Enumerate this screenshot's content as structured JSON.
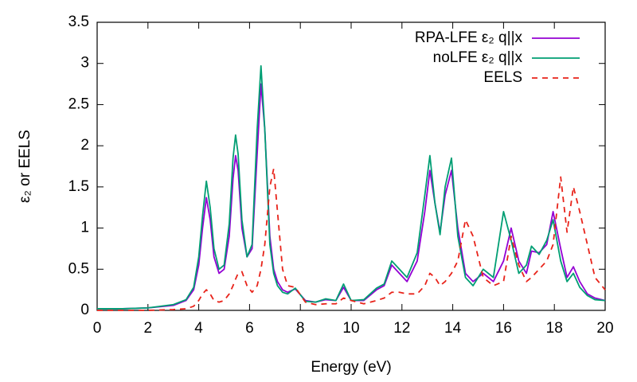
{
  "chart_data": {
    "type": "line",
    "xlabel": "Energy (eV)",
    "ylabel": "ε₂ or EELS",
    "x": [
      0,
      1,
      2,
      3,
      3.5,
      3.8,
      4.0,
      4.15,
      4.3,
      4.45,
      4.6,
      4.8,
      5.0,
      5.2,
      5.35,
      5.45,
      5.55,
      5.7,
      5.9,
      6.1,
      6.3,
      6.45,
      6.6,
      6.8,
      6.95,
      7.1,
      7.3,
      7.5,
      7.8,
      8.2,
      8.6,
      9.0,
      9.4,
      9.7,
      10.0,
      10.5,
      11.0,
      11.3,
      11.6,
      11.9,
      12.2,
      12.6,
      12.9,
      13.1,
      13.3,
      13.5,
      13.7,
      13.95,
      14.2,
      14.5,
      14.8,
      15.2,
      15.6,
      16.0,
      16.3,
      16.6,
      16.9,
      17.1,
      17.4,
      17.7,
      17.95,
      18.25,
      18.5,
      18.75,
      19.0,
      19.3,
      19.6,
      20
    ],
    "series": [
      {
        "name": "RPA-LFE ε₂ q||x",
        "color": "#9400d3",
        "dashed": false,
        "values": [
          0.02,
          0.02,
          0.03,
          0.06,
          0.12,
          0.25,
          0.55,
          1.0,
          1.37,
          1.1,
          0.65,
          0.45,
          0.5,
          0.9,
          1.6,
          1.88,
          1.7,
          1.0,
          0.65,
          0.75,
          1.9,
          2.75,
          2.2,
          0.9,
          0.5,
          0.35,
          0.25,
          0.22,
          0.26,
          0.12,
          0.1,
          0.13,
          0.12,
          0.28,
          0.12,
          0.12,
          0.25,
          0.3,
          0.55,
          0.45,
          0.35,
          0.6,
          1.2,
          1.7,
          1.3,
          0.95,
          1.4,
          1.7,
          1.0,
          0.45,
          0.35,
          0.45,
          0.35,
          0.6,
          1.0,
          0.6,
          0.45,
          0.72,
          0.7,
          0.8,
          1.2,
          0.75,
          0.4,
          0.53,
          0.35,
          0.2,
          0.15,
          0.12
        ]
      },
      {
        "name": "noLFE ε₂ q||x",
        "color": "#009e73",
        "dashed": false,
        "values": [
          0.02,
          0.02,
          0.03,
          0.07,
          0.13,
          0.28,
          0.65,
          1.15,
          1.57,
          1.25,
          0.75,
          0.5,
          0.55,
          1.05,
          1.85,
          2.13,
          1.9,
          1.1,
          0.65,
          0.8,
          2.2,
          2.97,
          2.2,
          0.8,
          0.45,
          0.3,
          0.22,
          0.2,
          0.27,
          0.11,
          0.1,
          0.14,
          0.12,
          0.32,
          0.12,
          0.13,
          0.27,
          0.32,
          0.6,
          0.5,
          0.4,
          0.7,
          1.4,
          1.88,
          1.3,
          0.92,
          1.5,
          1.85,
          0.9,
          0.4,
          0.3,
          0.5,
          0.4,
          1.2,
          0.85,
          0.45,
          0.55,
          0.78,
          0.68,
          0.85,
          1.1,
          0.6,
          0.35,
          0.45,
          0.28,
          0.18,
          0.13,
          0.12
        ]
      },
      {
        "name": "EELS",
        "color": "#e8231a",
        "dashed": true,
        "values": [
          0.0,
          0.0,
          0.0,
          0.01,
          0.02,
          0.05,
          0.12,
          0.2,
          0.25,
          0.2,
          0.12,
          0.1,
          0.12,
          0.2,
          0.3,
          0.38,
          0.45,
          0.47,
          0.3,
          0.22,
          0.3,
          0.5,
          0.8,
          1.5,
          1.72,
          1.2,
          0.5,
          0.3,
          0.28,
          0.1,
          0.07,
          0.08,
          0.08,
          0.15,
          0.12,
          0.08,
          0.12,
          0.15,
          0.22,
          0.22,
          0.2,
          0.2,
          0.3,
          0.45,
          0.4,
          0.3,
          0.35,
          0.45,
          0.6,
          1.1,
          0.9,
          0.4,
          0.3,
          0.35,
          0.9,
          0.55,
          0.35,
          0.4,
          0.5,
          0.6,
          0.8,
          1.62,
          0.95,
          1.5,
          1.2,
          0.8,
          0.4,
          0.25
        ]
      }
    ],
    "xlim": [
      0,
      20
    ],
    "xticks": [
      0,
      2,
      4,
      6,
      8,
      10,
      12,
      14,
      16,
      18,
      20
    ],
    "ylim": [
      0,
      3.5
    ],
    "yticks": [
      0,
      0.5,
      1,
      1.5,
      2,
      2.5,
      3,
      3.5
    ],
    "grid": false,
    "legend": "top-right"
  }
}
